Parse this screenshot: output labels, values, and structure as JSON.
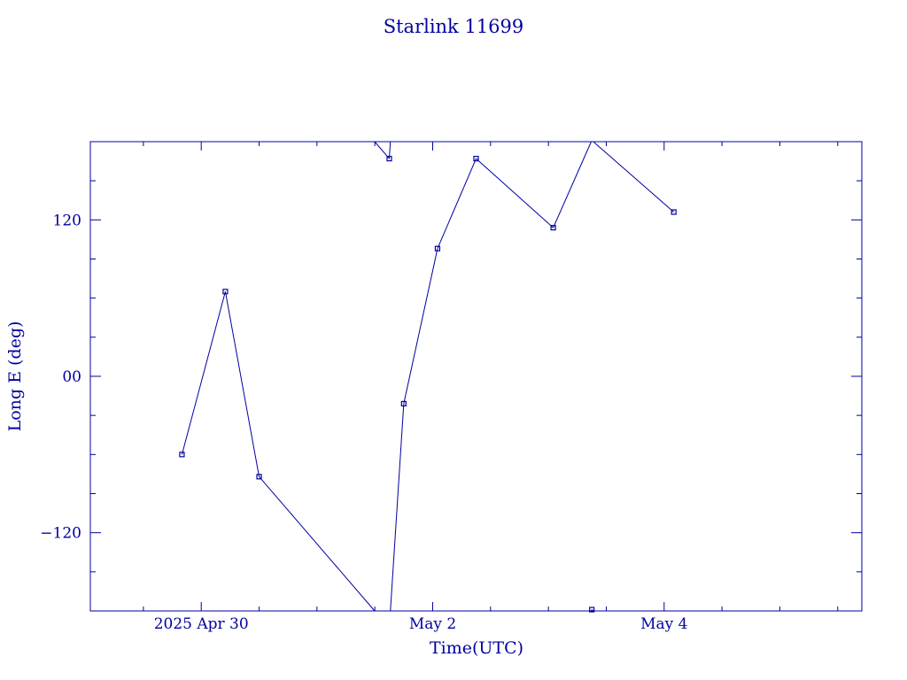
{
  "chart_data": {
    "type": "line",
    "title": "Starlink 11699",
    "xlabel": "Time(UTC)",
    "ylabel": "Long E (deg)",
    "x_ticks": [
      {
        "date": "2025-04-30",
        "label": "2025 Apr 30"
      },
      {
        "date": "2025-05-02",
        "label": "May  2"
      },
      {
        "date": "2025-05-04",
        "label": "May  4"
      }
    ],
    "y_ticks": [
      {
        "value": 120,
        "label": "120"
      },
      {
        "value": 0,
        "label": "00"
      },
      {
        "value": -120,
        "label": "−120"
      }
    ],
    "xlim": [
      "2025-04-29T01:00Z",
      "2025-05-05T17:00Z"
    ],
    "ylim": [
      -180,
      180
    ],
    "color": "#0000a0",
    "points": [
      {
        "t": "2025-04-29T20:00Z",
        "lon": -60
      },
      {
        "t": "2025-04-30T05:00Z",
        "lon": 65
      },
      {
        "t": "2025-04-30T12:00Z",
        "lon": -77
      },
      {
        "t": "2025-05-01T15:00Z",
        "lon": 167
      },
      {
        "t": "2025-05-01T18:00Z",
        "lon": -21
      },
      {
        "t": "2025-05-02T01:00Z",
        "lon": 98
      },
      {
        "t": "2025-05-02T09:00Z",
        "lon": 167
      },
      {
        "t": "2025-05-03T01:00Z",
        "lon": 114
      },
      {
        "t": "2025-05-03T09:00Z",
        "lon": -179
      },
      {
        "t": "2025-05-04T02:00Z",
        "lon": 126
      }
    ]
  }
}
